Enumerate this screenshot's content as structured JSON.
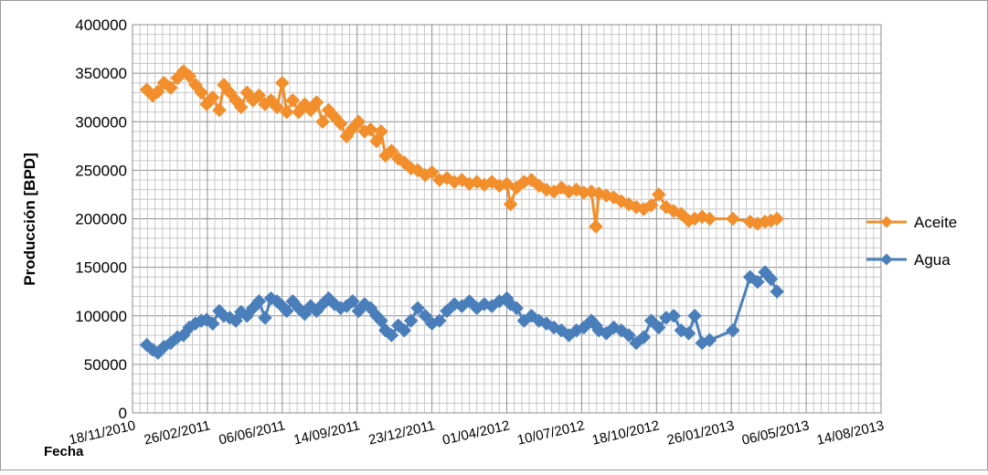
{
  "chart_data": {
    "type": "line",
    "title": "",
    "xlabel": "Fecha",
    "ylabel": "Producción [BPD]",
    "ylim": [
      0,
      400000
    ],
    "yticks": [
      0,
      50000,
      100000,
      150000,
      200000,
      250000,
      300000,
      350000,
      400000
    ],
    "xlim": [
      "18/11/2010",
      "14/08/2013"
    ],
    "xticks": [
      "18/11/2010",
      "26/02/2011",
      "06/06/2011",
      "14/09/2011",
      "23/12/2011",
      "01/04/2012",
      "10/07/2012",
      "18/10/2012",
      "26/01/2013",
      "06/05/2013",
      "14/08/2013"
    ],
    "grid": true,
    "legend_position": "right",
    "series": [
      {
        "name": "Aceite",
        "color": "#F28E2B",
        "marker": "diamond",
        "points": [
          [
            "2010-12-07",
            333000
          ],
          [
            "2010-12-15",
            327000
          ],
          [
            "2010-12-22",
            331000
          ],
          [
            "2010-12-30",
            340000
          ],
          [
            "2011-01-08",
            335000
          ],
          [
            "2011-01-17",
            345000
          ],
          [
            "2011-01-25",
            352000
          ],
          [
            "2011-02-02",
            347000
          ],
          [
            "2011-02-10",
            338000
          ],
          [
            "2011-02-18",
            330000
          ],
          [
            "2011-02-25",
            318000
          ],
          [
            "2011-03-05",
            325000
          ],
          [
            "2011-03-14",
            312000
          ],
          [
            "2011-03-20",
            338000
          ],
          [
            "2011-03-28",
            330000
          ],
          [
            "2011-04-05",
            322000
          ],
          [
            "2011-04-12",
            315000
          ],
          [
            "2011-04-20",
            330000
          ],
          [
            "2011-04-28",
            322000
          ],
          [
            "2011-05-06",
            327000
          ],
          [
            "2011-05-14",
            318000
          ],
          [
            "2011-05-22",
            322000
          ],
          [
            "2011-05-30",
            315000
          ],
          [
            "2011-06-06",
            340000
          ],
          [
            "2011-06-12",
            310000
          ],
          [
            "2011-06-20",
            322000
          ],
          [
            "2011-06-28",
            310000
          ],
          [
            "2011-07-06",
            318000
          ],
          [
            "2011-07-14",
            312000
          ],
          [
            "2011-07-22",
            320000
          ],
          [
            "2011-07-30",
            300000
          ],
          [
            "2011-08-07",
            312000
          ],
          [
            "2011-08-15",
            305000
          ],
          [
            "2011-08-23",
            298000
          ],
          [
            "2011-08-31",
            285000
          ],
          [
            "2011-09-08",
            293000
          ],
          [
            "2011-09-16",
            300000
          ],
          [
            "2011-09-24",
            290000
          ],
          [
            "2011-10-02",
            292000
          ],
          [
            "2011-10-10",
            280000
          ],
          [
            "2011-10-16",
            290000
          ],
          [
            "2011-10-22",
            265000
          ],
          [
            "2011-10-30",
            270000
          ],
          [
            "2011-11-08",
            262000
          ],
          [
            "2011-11-16",
            258000
          ],
          [
            "2011-11-25",
            252000
          ],
          [
            "2011-12-04",
            250000
          ],
          [
            "2011-12-14",
            245000
          ],
          [
            "2011-12-23",
            248000
          ],
          [
            "2012-01-02",
            240000
          ],
          [
            "2012-01-12",
            242000
          ],
          [
            "2012-01-22",
            238000
          ],
          [
            "2012-02-01",
            240000
          ],
          [
            "2012-02-11",
            236000
          ],
          [
            "2012-02-21",
            238000
          ],
          [
            "2012-03-02",
            235000
          ],
          [
            "2012-03-12",
            238000
          ],
          [
            "2012-03-22",
            234000
          ],
          [
            "2012-04-01",
            236000
          ],
          [
            "2012-04-06",
            215000
          ],
          [
            "2012-04-14",
            232000
          ],
          [
            "2012-04-24",
            238000
          ],
          [
            "2012-05-04",
            240000
          ],
          [
            "2012-05-14",
            234000
          ],
          [
            "2012-05-24",
            230000
          ],
          [
            "2012-06-03",
            228000
          ],
          [
            "2012-06-13",
            232000
          ],
          [
            "2012-06-23",
            228000
          ],
          [
            "2012-07-03",
            230000
          ],
          [
            "2012-07-13",
            227000
          ],
          [
            "2012-07-23",
            228000
          ],
          [
            "2012-07-29",
            192000
          ],
          [
            "2012-08-02",
            226000
          ],
          [
            "2012-08-12",
            224000
          ],
          [
            "2012-08-22",
            222000
          ],
          [
            "2012-09-01",
            218000
          ],
          [
            "2012-09-11",
            215000
          ],
          [
            "2012-09-21",
            212000
          ],
          [
            "2012-10-01",
            210000
          ],
          [
            "2012-10-11",
            214000
          ],
          [
            "2012-10-21",
            225000
          ],
          [
            "2012-10-31",
            212000
          ],
          [
            "2012-11-10",
            208000
          ],
          [
            "2012-11-20",
            205000
          ],
          [
            "2012-11-30",
            198000
          ],
          [
            "2012-12-08",
            200000
          ],
          [
            "2012-12-18",
            202000
          ],
          [
            "2012-12-28",
            200000
          ],
          [
            "2013-01-28",
            200000
          ],
          [
            "2013-02-20",
            197000
          ],
          [
            "2013-03-02",
            195000
          ],
          [
            "2013-03-12",
            197000
          ],
          [
            "2013-03-20",
            198000
          ],
          [
            "2013-03-28",
            200000
          ]
        ]
      },
      {
        "name": "Agua",
        "color": "#4A7EBB",
        "marker": "diamond",
        "points": [
          [
            "2010-12-07",
            70000
          ],
          [
            "2010-12-15",
            65000
          ],
          [
            "2010-12-22",
            62000
          ],
          [
            "2010-12-30",
            68000
          ],
          [
            "2011-01-08",
            72000
          ],
          [
            "2011-01-17",
            78000
          ],
          [
            "2011-01-25",
            80000
          ],
          [
            "2011-02-02",
            88000
          ],
          [
            "2011-02-10",
            92000
          ],
          [
            "2011-02-18",
            95000
          ],
          [
            "2011-02-25",
            96000
          ],
          [
            "2011-03-05",
            92000
          ],
          [
            "2011-03-14",
            105000
          ],
          [
            "2011-03-20",
            100000
          ],
          [
            "2011-03-28",
            98000
          ],
          [
            "2011-04-05",
            95000
          ],
          [
            "2011-04-12",
            104000
          ],
          [
            "2011-04-20",
            100000
          ],
          [
            "2011-04-28",
            108000
          ],
          [
            "2011-05-06",
            115000
          ],
          [
            "2011-05-14",
            98000
          ],
          [
            "2011-05-22",
            118000
          ],
          [
            "2011-05-30",
            115000
          ],
          [
            "2011-06-06",
            110000
          ],
          [
            "2011-06-12",
            105000
          ],
          [
            "2011-06-20",
            115000
          ],
          [
            "2011-06-28",
            108000
          ],
          [
            "2011-07-06",
            102000
          ],
          [
            "2011-07-14",
            110000
          ],
          [
            "2011-07-22",
            105000
          ],
          [
            "2011-07-30",
            112000
          ],
          [
            "2011-08-07",
            118000
          ],
          [
            "2011-08-15",
            112000
          ],
          [
            "2011-08-23",
            108000
          ],
          [
            "2011-08-31",
            110000
          ],
          [
            "2011-09-08",
            115000
          ],
          [
            "2011-09-16",
            105000
          ],
          [
            "2011-09-24",
            112000
          ],
          [
            "2011-10-02",
            108000
          ],
          [
            "2011-10-10",
            100000
          ],
          [
            "2011-10-16",
            95000
          ],
          [
            "2011-10-22",
            85000
          ],
          [
            "2011-10-30",
            80000
          ],
          [
            "2011-11-08",
            90000
          ],
          [
            "2011-11-16",
            85000
          ],
          [
            "2011-11-25",
            95000
          ],
          [
            "2011-12-04",
            108000
          ],
          [
            "2011-12-14",
            100000
          ],
          [
            "2011-12-23",
            92000
          ],
          [
            "2012-01-02",
            95000
          ],
          [
            "2012-01-12",
            105000
          ],
          [
            "2012-01-22",
            112000
          ],
          [
            "2012-02-01",
            110000
          ],
          [
            "2012-02-11",
            115000
          ],
          [
            "2012-02-21",
            108000
          ],
          [
            "2012-03-02",
            112000
          ],
          [
            "2012-03-12",
            110000
          ],
          [
            "2012-03-22",
            115000
          ],
          [
            "2012-04-01",
            118000
          ],
          [
            "2012-04-06",
            112000
          ],
          [
            "2012-04-14",
            108000
          ],
          [
            "2012-04-24",
            95000
          ],
          [
            "2012-05-04",
            100000
          ],
          [
            "2012-05-14",
            95000
          ],
          [
            "2012-05-24",
            92000
          ],
          [
            "2012-06-03",
            88000
          ],
          [
            "2012-06-13",
            85000
          ],
          [
            "2012-06-23",
            80000
          ],
          [
            "2012-07-03",
            85000
          ],
          [
            "2012-07-13",
            88000
          ],
          [
            "2012-07-23",
            95000
          ],
          [
            "2012-07-29",
            90000
          ],
          [
            "2012-08-02",
            85000
          ],
          [
            "2012-08-12",
            82000
          ],
          [
            "2012-08-22",
            88000
          ],
          [
            "2012-09-01",
            85000
          ],
          [
            "2012-09-11",
            80000
          ],
          [
            "2012-09-21",
            72000
          ],
          [
            "2012-10-01",
            78000
          ],
          [
            "2012-10-11",
            95000
          ],
          [
            "2012-10-21",
            88000
          ],
          [
            "2012-10-31",
            98000
          ],
          [
            "2012-11-10",
            100000
          ],
          [
            "2012-11-20",
            85000
          ],
          [
            "2012-11-30",
            82000
          ],
          [
            "2012-12-08",
            100000
          ],
          [
            "2012-12-18",
            72000
          ],
          [
            "2012-12-28",
            75000
          ],
          [
            "2013-01-28",
            85000
          ],
          [
            "2013-02-20",
            140000
          ],
          [
            "2013-03-02",
            135000
          ],
          [
            "2013-03-12",
            145000
          ],
          [
            "2013-03-20",
            138000
          ],
          [
            "2013-03-28",
            125000
          ]
        ]
      }
    ]
  }
}
